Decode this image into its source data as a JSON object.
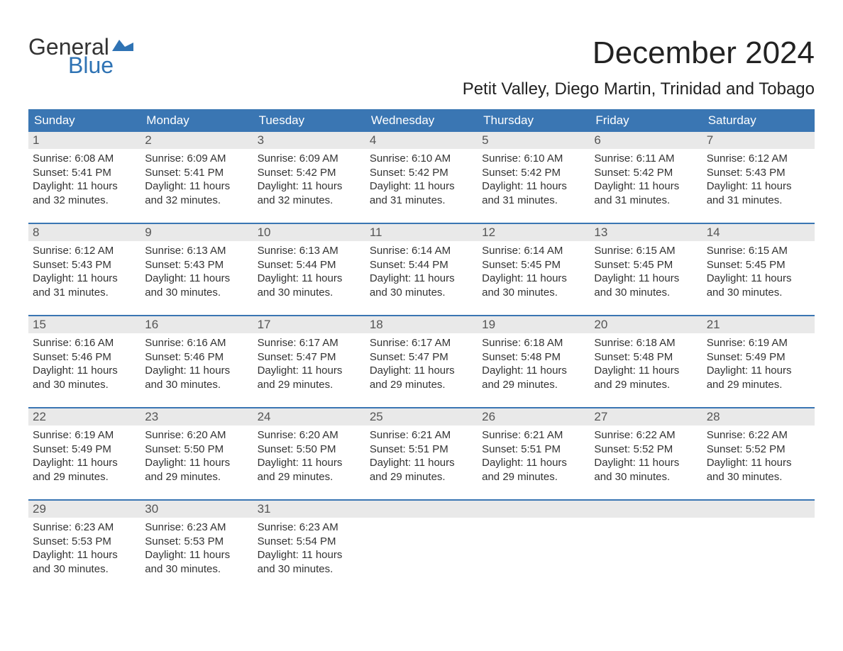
{
  "brand": {
    "word1": "General",
    "word2": "Blue",
    "flag_color": "#2f73b4",
    "text_dark": "#333333"
  },
  "title": "December 2024",
  "location": "Petit Valley, Diego Martin, Trinidad and Tobago",
  "colors": {
    "header_bg": "#3a76b3",
    "header_text": "#ffffff",
    "daynum_bg": "#e9e9e9",
    "daynum_text": "#555555",
    "body_text": "#333333",
    "week_divider": "#3a76b3",
    "page_bg": "#ffffff"
  },
  "weekdays": [
    "Sunday",
    "Monday",
    "Tuesday",
    "Wednesday",
    "Thursday",
    "Friday",
    "Saturday"
  ],
  "weeks": [
    {
      "days": [
        {
          "n": "1",
          "sr": "Sunrise: 6:08 AM",
          "ss": "Sunset: 5:41 PM",
          "d1": "Daylight: 11 hours",
          "d2": "and 32 minutes."
        },
        {
          "n": "2",
          "sr": "Sunrise: 6:09 AM",
          "ss": "Sunset: 5:41 PM",
          "d1": "Daylight: 11 hours",
          "d2": "and 32 minutes."
        },
        {
          "n": "3",
          "sr": "Sunrise: 6:09 AM",
          "ss": "Sunset: 5:42 PM",
          "d1": "Daylight: 11 hours",
          "d2": "and 32 minutes."
        },
        {
          "n": "4",
          "sr": "Sunrise: 6:10 AM",
          "ss": "Sunset: 5:42 PM",
          "d1": "Daylight: 11 hours",
          "d2": "and 31 minutes."
        },
        {
          "n": "5",
          "sr": "Sunrise: 6:10 AM",
          "ss": "Sunset: 5:42 PM",
          "d1": "Daylight: 11 hours",
          "d2": "and 31 minutes."
        },
        {
          "n": "6",
          "sr": "Sunrise: 6:11 AM",
          "ss": "Sunset: 5:42 PM",
          "d1": "Daylight: 11 hours",
          "d2": "and 31 minutes."
        },
        {
          "n": "7",
          "sr": "Sunrise: 6:12 AM",
          "ss": "Sunset: 5:43 PM",
          "d1": "Daylight: 11 hours",
          "d2": "and 31 minutes."
        }
      ]
    },
    {
      "days": [
        {
          "n": "8",
          "sr": "Sunrise: 6:12 AM",
          "ss": "Sunset: 5:43 PM",
          "d1": "Daylight: 11 hours",
          "d2": "and 31 minutes."
        },
        {
          "n": "9",
          "sr": "Sunrise: 6:13 AM",
          "ss": "Sunset: 5:43 PM",
          "d1": "Daylight: 11 hours",
          "d2": "and 30 minutes."
        },
        {
          "n": "10",
          "sr": "Sunrise: 6:13 AM",
          "ss": "Sunset: 5:44 PM",
          "d1": "Daylight: 11 hours",
          "d2": "and 30 minutes."
        },
        {
          "n": "11",
          "sr": "Sunrise: 6:14 AM",
          "ss": "Sunset: 5:44 PM",
          "d1": "Daylight: 11 hours",
          "d2": "and 30 minutes."
        },
        {
          "n": "12",
          "sr": "Sunrise: 6:14 AM",
          "ss": "Sunset: 5:45 PM",
          "d1": "Daylight: 11 hours",
          "d2": "and 30 minutes."
        },
        {
          "n": "13",
          "sr": "Sunrise: 6:15 AM",
          "ss": "Sunset: 5:45 PM",
          "d1": "Daylight: 11 hours",
          "d2": "and 30 minutes."
        },
        {
          "n": "14",
          "sr": "Sunrise: 6:15 AM",
          "ss": "Sunset: 5:45 PM",
          "d1": "Daylight: 11 hours",
          "d2": "and 30 minutes."
        }
      ]
    },
    {
      "days": [
        {
          "n": "15",
          "sr": "Sunrise: 6:16 AM",
          "ss": "Sunset: 5:46 PM",
          "d1": "Daylight: 11 hours",
          "d2": "and 30 minutes."
        },
        {
          "n": "16",
          "sr": "Sunrise: 6:16 AM",
          "ss": "Sunset: 5:46 PM",
          "d1": "Daylight: 11 hours",
          "d2": "and 30 minutes."
        },
        {
          "n": "17",
          "sr": "Sunrise: 6:17 AM",
          "ss": "Sunset: 5:47 PM",
          "d1": "Daylight: 11 hours",
          "d2": "and 29 minutes."
        },
        {
          "n": "18",
          "sr": "Sunrise: 6:17 AM",
          "ss": "Sunset: 5:47 PM",
          "d1": "Daylight: 11 hours",
          "d2": "and 29 minutes."
        },
        {
          "n": "19",
          "sr": "Sunrise: 6:18 AM",
          "ss": "Sunset: 5:48 PM",
          "d1": "Daylight: 11 hours",
          "d2": "and 29 minutes."
        },
        {
          "n": "20",
          "sr": "Sunrise: 6:18 AM",
          "ss": "Sunset: 5:48 PM",
          "d1": "Daylight: 11 hours",
          "d2": "and 29 minutes."
        },
        {
          "n": "21",
          "sr": "Sunrise: 6:19 AM",
          "ss": "Sunset: 5:49 PM",
          "d1": "Daylight: 11 hours",
          "d2": "and 29 minutes."
        }
      ]
    },
    {
      "days": [
        {
          "n": "22",
          "sr": "Sunrise: 6:19 AM",
          "ss": "Sunset: 5:49 PM",
          "d1": "Daylight: 11 hours",
          "d2": "and 29 minutes."
        },
        {
          "n": "23",
          "sr": "Sunrise: 6:20 AM",
          "ss": "Sunset: 5:50 PM",
          "d1": "Daylight: 11 hours",
          "d2": "and 29 minutes."
        },
        {
          "n": "24",
          "sr": "Sunrise: 6:20 AM",
          "ss": "Sunset: 5:50 PM",
          "d1": "Daylight: 11 hours",
          "d2": "and 29 minutes."
        },
        {
          "n": "25",
          "sr": "Sunrise: 6:21 AM",
          "ss": "Sunset: 5:51 PM",
          "d1": "Daylight: 11 hours",
          "d2": "and 29 minutes."
        },
        {
          "n": "26",
          "sr": "Sunrise: 6:21 AM",
          "ss": "Sunset: 5:51 PM",
          "d1": "Daylight: 11 hours",
          "d2": "and 29 minutes."
        },
        {
          "n": "27",
          "sr": "Sunrise: 6:22 AM",
          "ss": "Sunset: 5:52 PM",
          "d1": "Daylight: 11 hours",
          "d2": "and 30 minutes."
        },
        {
          "n": "28",
          "sr": "Sunrise: 6:22 AM",
          "ss": "Sunset: 5:52 PM",
          "d1": "Daylight: 11 hours",
          "d2": "and 30 minutes."
        }
      ]
    },
    {
      "days": [
        {
          "n": "29",
          "sr": "Sunrise: 6:23 AM",
          "ss": "Sunset: 5:53 PM",
          "d1": "Daylight: 11 hours",
          "d2": "and 30 minutes."
        },
        {
          "n": "30",
          "sr": "Sunrise: 6:23 AM",
          "ss": "Sunset: 5:53 PM",
          "d1": "Daylight: 11 hours",
          "d2": "and 30 minutes."
        },
        {
          "n": "31",
          "sr": "Sunrise: 6:23 AM",
          "ss": "Sunset: 5:54 PM",
          "d1": "Daylight: 11 hours",
          "d2": "and 30 minutes."
        },
        {
          "n": "",
          "sr": "",
          "ss": "",
          "d1": "",
          "d2": ""
        },
        {
          "n": "",
          "sr": "",
          "ss": "",
          "d1": "",
          "d2": ""
        },
        {
          "n": "",
          "sr": "",
          "ss": "",
          "d1": "",
          "d2": ""
        },
        {
          "n": "",
          "sr": "",
          "ss": "",
          "d1": "",
          "d2": ""
        }
      ]
    }
  ]
}
